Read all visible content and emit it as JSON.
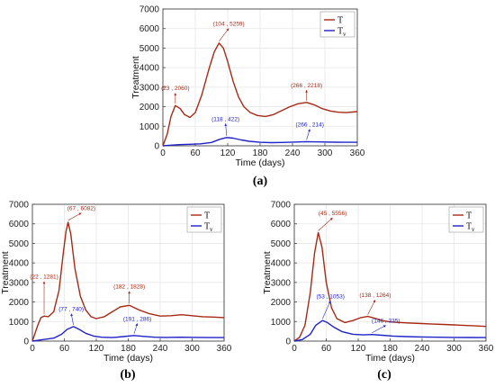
{
  "colors": {
    "T": "#a52a16",
    "Tv": "#1f22c8",
    "axis": "#444444",
    "grid": "#e6e6e6"
  },
  "chart_data": [
    {
      "type": "line",
      "panel_label": "(a)",
      "xlabel": "Time (days)",
      "ylabel": "Treatment",
      "xlim": [
        0,
        360
      ],
      "ylim": [
        0,
        7000
      ],
      "xticks": [
        "0",
        "60",
        "120",
        "180",
        "240",
        "300",
        "360"
      ],
      "yticks": [
        "0",
        "1000",
        "2000",
        "3000",
        "4000",
        "5000",
        "6000",
        "7000"
      ],
      "legend_position": "top-right",
      "series": [
        {
          "name": "T",
          "legend_main": "T",
          "legend_sub": "",
          "color_key": "T",
          "x": [
            0,
            8,
            15,
            23,
            32,
            40,
            50,
            60,
            72,
            85,
            95,
            104,
            112,
            120,
            130,
            140,
            150,
            162,
            175,
            190,
            205,
            220,
            235,
            250,
            266,
            280,
            295,
            310,
            325,
            340,
            360
          ],
          "y": [
            0,
            600,
            1500,
            2060,
            1900,
            1600,
            1450,
            1700,
            2600,
            3900,
            4800,
            5259,
            5000,
            4300,
            3300,
            2500,
            2000,
            1700,
            1550,
            1500,
            1600,
            1800,
            2000,
            2150,
            2218,
            2100,
            1900,
            1780,
            1720,
            1700,
            1750
          ]
        },
        {
          "name": "Tv",
          "legend_main": "T",
          "legend_sub": "v",
          "color_key": "Tv",
          "x": [
            0,
            15,
            30,
            50,
            70,
            90,
            105,
            118,
            130,
            145,
            160,
            180,
            200,
            220,
            240,
            266,
            290,
            320,
            360
          ],
          "y": [
            0,
            30,
            60,
            80,
            100,
            170,
            330,
            422,
            390,
            300,
            230,
            180,
            160,
            170,
            190,
            214,
            200,
            185,
            180
          ]
        }
      ],
      "annotations": [
        {
          "text": "(23 , 2060)",
          "x": 23,
          "y": 2060,
          "color_key": "T",
          "label_x": 23,
          "label_y": 2800
        },
        {
          "text": "(104 , 5259)",
          "x": 104,
          "y": 5259,
          "color_key": "T",
          "label_x": 122,
          "label_y": 6100
        },
        {
          "text": "(266 , 2218)",
          "x": 266,
          "y": 2218,
          "color_key": "T",
          "label_x": 266,
          "label_y": 2950
        },
        {
          "text": "(118 , 422)",
          "x": 118,
          "y": 422,
          "color_key": "Tv",
          "label_x": 116,
          "label_y": 1230
        },
        {
          "text": "(266 , 214)",
          "x": 266,
          "y": 214,
          "color_key": "Tv",
          "label_x": 272,
          "label_y": 950
        }
      ]
    },
    {
      "type": "line",
      "panel_label": "(b)",
      "xlabel": "Time (days)",
      "ylabel": "Treatment",
      "xlim": [
        0,
        360
      ],
      "ylim": [
        0,
        7000
      ],
      "xticks": [
        "0",
        "60",
        "120",
        "180",
        "240",
        "300",
        "360"
      ],
      "yticks": [
        "0",
        "1000",
        "2000",
        "3000",
        "4000",
        "5000",
        "6000",
        "7000"
      ],
      "legend_position": "top-right",
      "series": [
        {
          "name": "T",
          "legend_main": "T",
          "legend_sub": "",
          "color_key": "T",
          "x": [
            0,
            10,
            16,
            22,
            30,
            40,
            50,
            58,
            63,
            67,
            72,
            80,
            90,
            100,
            110,
            120,
            135,
            150,
            165,
            182,
            200,
            220,
            240,
            260,
            280,
            300,
            320,
            340,
            360
          ],
          "y": [
            0,
            800,
            1200,
            1281,
            1250,
            1500,
            2600,
            4500,
            5600,
            6082,
            5500,
            3700,
            2300,
            1600,
            1250,
            1150,
            1250,
            1500,
            1750,
            1828,
            1600,
            1400,
            1280,
            1300,
            1350,
            1300,
            1250,
            1230,
            1200
          ]
        },
        {
          "name": "Tv",
          "legend_main": "T",
          "legend_sub": "v",
          "color_key": "Tv",
          "x": [
            0,
            20,
            40,
            55,
            65,
            77,
            88,
            100,
            115,
            130,
            150,
            170,
            191,
            210,
            230,
            250,
            280,
            310,
            340,
            360
          ],
          "y": [
            0,
            80,
            150,
            350,
            600,
            740,
            600,
            400,
            260,
            200,
            180,
            230,
            286,
            240,
            200,
            190,
            200,
            190,
            180,
            180
          ]
        }
      ],
      "annotations": [
        {
          "text": "(22 , 1281)",
          "x": 22,
          "y": 1281,
          "color_key": "T",
          "label_x": 22,
          "label_y": 3150
        },
        {
          "text": "(67 , 6082)",
          "x": 67,
          "y": 6082,
          "color_key": "T",
          "label_x": 92,
          "label_y": 6650
        },
        {
          "text": "(182 , 1828)",
          "x": 182,
          "y": 1828,
          "color_key": "T",
          "label_x": 182,
          "label_y": 2650
        },
        {
          "text": "(77 , 740)",
          "x": 77,
          "y": 740,
          "color_key": "Tv",
          "label_x": 73,
          "label_y": 1500
        },
        {
          "text": "(191 , 286)",
          "x": 191,
          "y": 286,
          "color_key": "Tv",
          "label_x": 197,
          "label_y": 1000
        }
      ]
    },
    {
      "type": "line",
      "panel_label": "(c)",
      "xlabel": "Time (days)",
      "ylabel": "Treatment",
      "xlim": [
        0,
        360
      ],
      "ylim": [
        0,
        7000
      ],
      "xticks": [
        "0",
        "60",
        "120",
        "180",
        "240",
        "300",
        "360"
      ],
      "yticks": [
        "0",
        "1000",
        "2000",
        "3000",
        "4000",
        "5000",
        "6000",
        "7000"
      ],
      "legend_position": "top-right",
      "series": [
        {
          "name": "T",
          "legend_main": "T",
          "legend_sub": "",
          "color_key": "T",
          "x": [
            0,
            10,
            20,
            30,
            38,
            45,
            52,
            60,
            70,
            80,
            95,
            110,
            125,
            138,
            150,
            165,
            180,
            200,
            220,
            240,
            260,
            280,
            300,
            320,
            340,
            360
          ],
          "y": [
            0,
            200,
            800,
            2500,
            4500,
            5556,
            4800,
            3000,
            1700,
            1150,
            950,
            1050,
            1200,
            1264,
            1180,
            1050,
            980,
            950,
            920,
            900,
            870,
            850,
            830,
            800,
            780,
            750
          ]
        },
        {
          "name": "Tv",
          "legend_main": "T",
          "legend_sub": "v",
          "color_key": "Tv",
          "x": [
            0,
            15,
            30,
            40,
            53,
            62,
            75,
            90,
            110,
            130,
            146,
            165,
            185,
            210,
            240,
            270,
            300,
            330,
            360
          ],
          "y": [
            0,
            80,
            350,
            800,
            1053,
            950,
            700,
            480,
            350,
            320,
            335,
            300,
            260,
            230,
            210,
            200,
            190,
            185,
            180
          ]
        }
      ],
      "annotations": [
        {
          "text": "(45 , 5556)",
          "x": 45,
          "y": 5556,
          "color_key": "T",
          "label_x": 72,
          "label_y": 6400
        },
        {
          "text": "(138 , 1264)",
          "x": 138,
          "y": 1264,
          "color_key": "T",
          "label_x": 152,
          "label_y": 2200
        },
        {
          "text": "(53 , 1053)",
          "x": 53,
          "y": 1053,
          "color_key": "Tv",
          "label_x": 68,
          "label_y": 2150
        },
        {
          "text": "(146 , 335)",
          "x": 146,
          "y": 335,
          "color_key": "Tv",
          "label_x": 172,
          "label_y": 900
        }
      ]
    }
  ]
}
